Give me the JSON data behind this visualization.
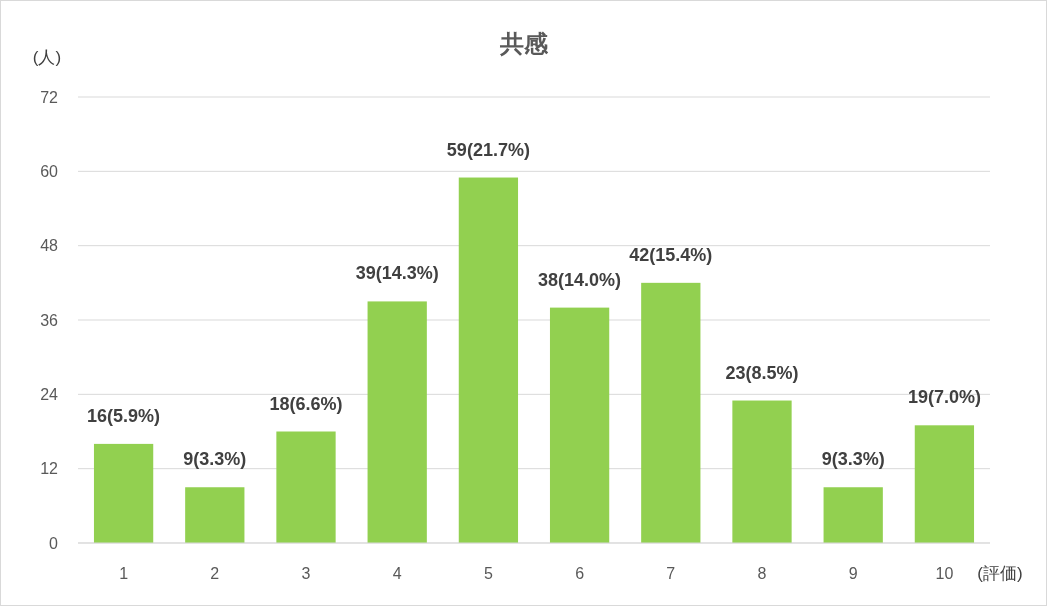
{
  "chart_data": {
    "type": "bar",
    "title": "共感",
    "ylabel": "(人)",
    "xlabel": "(評価)",
    "categories": [
      "1",
      "2",
      "3",
      "4",
      "5",
      "6",
      "7",
      "8",
      "9",
      "10"
    ],
    "values": [
      16,
      9,
      18,
      39,
      59,
      38,
      42,
      23,
      9,
      19
    ],
    "value_labels": [
      "16(5.9%)",
      "9(3.3%)",
      "18(6.6%)",
      "39(14.3%)",
      "59(21.7%)",
      "38(14.0%)",
      "42(15.4%)",
      "23(8.5%)",
      "9(3.3%)",
      "19(7.0%)"
    ],
    "color": "#92d050",
    "ylim": [
      0,
      72
    ],
    "yticks": [
      0,
      12,
      24,
      36,
      48,
      60,
      72
    ],
    "grid": "y"
  }
}
